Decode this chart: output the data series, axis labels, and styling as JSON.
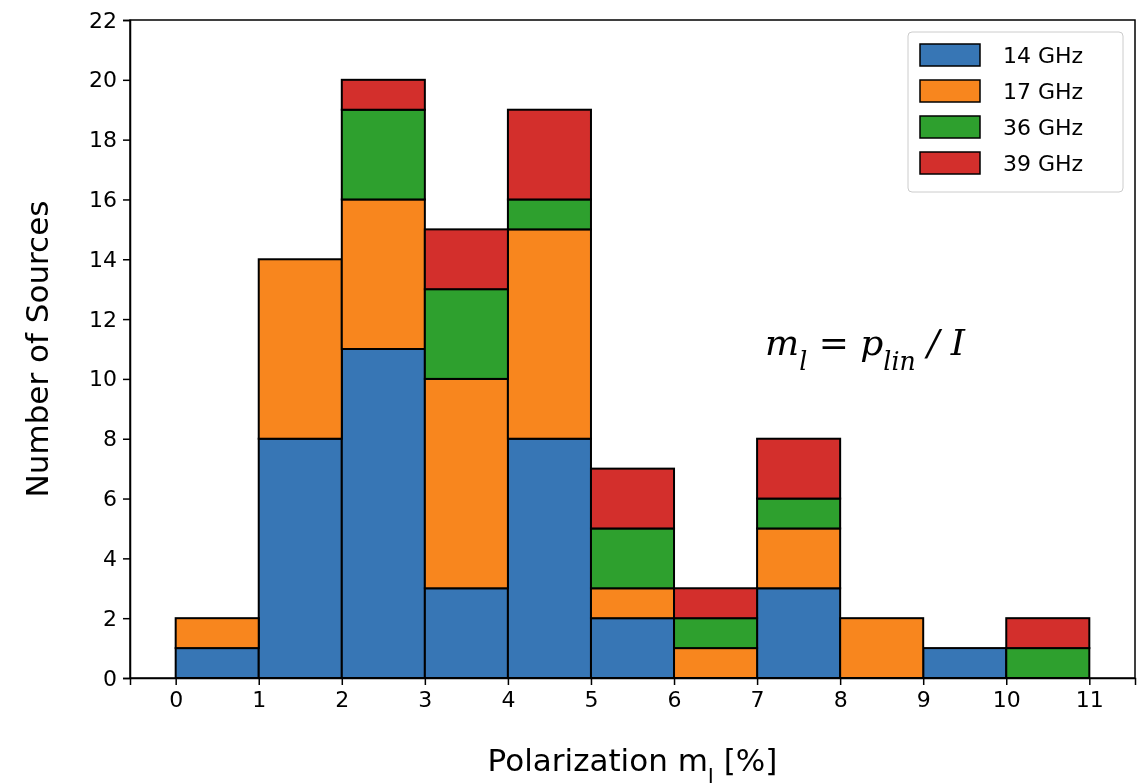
{
  "chart_data": {
    "type": "bar",
    "xlabel": "Polarization m$_{l}$ [%]",
    "ylabel": "Number of Sources",
    "stacked": true,
    "x": [
      0.5,
      1.5,
      2.5,
      3.5,
      4.5,
      5.5,
      6.5,
      7.5,
      8.5,
      9.5,
      10.5
    ],
    "series": [
      {
        "name": "14 GHz",
        "color": "#3776b5",
        "values": [
          1,
          8,
          11,
          3,
          8,
          2,
          0,
          3,
          0,
          1,
          0
        ]
      },
      {
        "name": "17 GHz",
        "color": "#f8861e",
        "values": [
          1,
          6,
          5,
          7,
          7,
          1,
          1,
          2,
          2,
          0,
          0
        ]
      },
      {
        "name": "36 GHz",
        "color": "#2ea02e",
        "values": [
          0,
          0,
          3,
          3,
          1,
          2,
          1,
          1,
          0,
          0,
          1
        ]
      },
      {
        "name": "39 GHz",
        "color": "#d32f2c",
        "values": [
          0,
          0,
          1,
          2,
          3,
          2,
          1,
          2,
          0,
          0,
          1
        ]
      }
    ],
    "xlim": [
      -0.55,
      11.55
    ],
    "xticks": [
      0,
      1,
      2,
      3,
      4,
      5,
      6,
      7,
      8,
      9,
      10,
      11
    ],
    "ylim": [
      0,
      22
    ],
    "yticks": [
      0,
      2,
      4,
      6,
      8,
      10,
      12,
      14,
      16,
      18,
      20,
      22
    ],
    "legend": "top right",
    "grid": false,
    "annotations": [
      "m$_{l}$ = p$_{lin}$ / I"
    ]
  }
}
